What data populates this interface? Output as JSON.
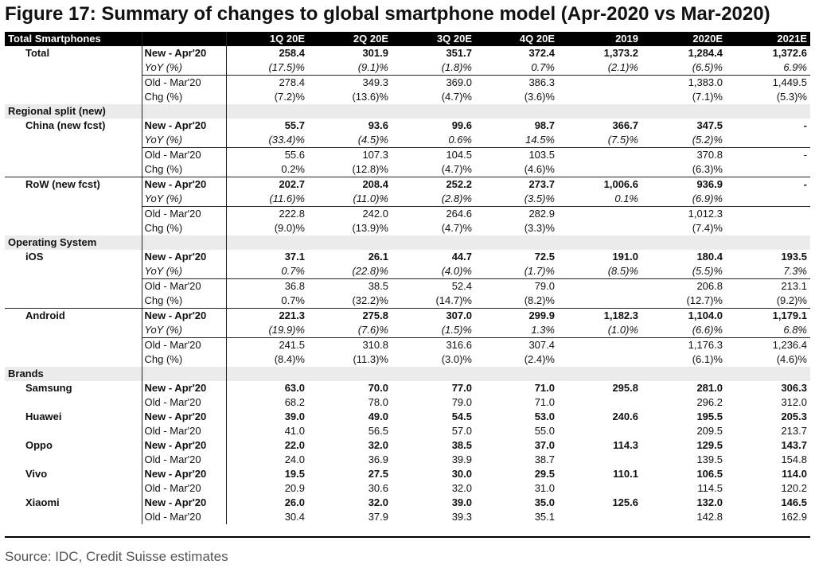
{
  "title": "Figure 17: Summary of changes to global smartphone model (Apr-2020 vs Mar-2020)",
  "header": {
    "first": "Total Smartphones",
    "cols": [
      "1Q 20E",
      "2Q 20E",
      "3Q 20E",
      "4Q 20E",
      "2019",
      "2020E",
      "2021E"
    ]
  },
  "rows": [
    {
      "kind": "data",
      "style": "bold",
      "group": "Total",
      "label": "New - Apr'20",
      "vals": [
        "258.4",
        "301.9",
        "351.7",
        "372.4",
        "1,373.2",
        "1,284.4",
        "1,372.6"
      ]
    },
    {
      "kind": "data",
      "style": "it",
      "group": "",
      "label": "YoY (%)",
      "vals": [
        "(17.5)%",
        "(9.1)%",
        "(1.8)%",
        "0.7%",
        "(2.1)%",
        "(6.5)%",
        "6.9%"
      ]
    },
    {
      "kind": "data",
      "style": "bt",
      "group": "",
      "label": "Old - Mar'20",
      "vals": [
        "278.4",
        "349.3",
        "369.0",
        "386.3",
        "",
        "1,383.0",
        "1,449.5"
      ]
    },
    {
      "kind": "data",
      "style": "",
      "group": "",
      "label": "Chg (%)",
      "vals": [
        "(7.2)%",
        "(13.6)%",
        "(4.7)%",
        "(3.6)%",
        "",
        "(7.1)%",
        "(5.3)%"
      ]
    },
    {
      "kind": "section",
      "label": "Regional split (new)"
    },
    {
      "kind": "data",
      "style": "bold",
      "group": "China (new fcst)",
      "label": "New - Apr'20",
      "vals": [
        "55.7",
        "93.6",
        "99.6",
        "98.7",
        "366.7",
        "347.5",
        "-"
      ]
    },
    {
      "kind": "data",
      "style": "it",
      "group": "",
      "label": "YoY (%)",
      "vals": [
        "(33.4)%",
        "(4.5)%",
        "0.6%",
        "14.5%",
        "(7.5)%",
        "(5.2)%",
        ""
      ]
    },
    {
      "kind": "data",
      "style": "bt",
      "group": "",
      "label": "Old - Mar'20",
      "vals": [
        "55.6",
        "107.3",
        "104.5",
        "103.5",
        "",
        "370.8",
        "-"
      ]
    },
    {
      "kind": "data",
      "style": "",
      "group": "",
      "label": "Chg (%)",
      "vals": [
        "0.2%",
        "(12.8)%",
        "(4.7)%",
        "(4.6)%",
        "",
        "(6.3)%",
        ""
      ]
    },
    {
      "kind": "data",
      "style": "bold gt",
      "group": "RoW (new fcst)",
      "label": "New - Apr'20",
      "vals": [
        "202.7",
        "208.4",
        "252.2",
        "273.7",
        "1,006.6",
        "936.9",
        "-"
      ]
    },
    {
      "kind": "data",
      "style": "it",
      "group": "",
      "label": "YoY (%)",
      "vals": [
        "(11.6)%",
        "(11.0)%",
        "(2.8)%",
        "(3.5)%",
        "0.1%",
        "(6.9)%",
        ""
      ]
    },
    {
      "kind": "data",
      "style": "bt",
      "group": "",
      "label": "Old - Mar'20",
      "vals": [
        "222.8",
        "242.0",
        "264.6",
        "282.9",
        "",
        "1,012.3",
        ""
      ]
    },
    {
      "kind": "data",
      "style": "",
      "group": "",
      "label": "Chg (%)",
      "vals": [
        "(9.0)%",
        "(13.9)%",
        "(4.7)%",
        "(3.3)%",
        "",
        "(7.4)%",
        ""
      ]
    },
    {
      "kind": "section",
      "label": "Operating System"
    },
    {
      "kind": "data",
      "style": "bold",
      "group": "iOS",
      "label": "New - Apr'20",
      "vals": [
        "37.1",
        "26.1",
        "44.7",
        "72.5",
        "191.0",
        "180.4",
        "193.5"
      ]
    },
    {
      "kind": "data",
      "style": "it",
      "group": "",
      "label": "YoY (%)",
      "vals": [
        "0.7%",
        "(22.8)%",
        "(4.0)%",
        "(1.7)%",
        "(8.5)%",
        "(5.5)%",
        "7.3%"
      ]
    },
    {
      "kind": "data",
      "style": "bt",
      "group": "",
      "label": "Old - Mar'20",
      "vals": [
        "36.8",
        "38.5",
        "52.4",
        "79.0",
        "",
        "206.8",
        "213.1"
      ]
    },
    {
      "kind": "data",
      "style": "",
      "group": "",
      "label": "Chg (%)",
      "vals": [
        "0.7%",
        "(32.2)%",
        "(14.7)%",
        "(8.2)%",
        "",
        "(12.7)%",
        "(9.2)%"
      ]
    },
    {
      "kind": "data",
      "style": "bold gt",
      "group": "Android",
      "label": "New - Apr'20",
      "vals": [
        "221.3",
        "275.8",
        "307.0",
        "299.9",
        "1,182.3",
        "1,104.0",
        "1,179.1"
      ]
    },
    {
      "kind": "data",
      "style": "it",
      "group": "",
      "label": "YoY (%)",
      "vals": [
        "(19.9)%",
        "(7.6)%",
        "(1.5)%",
        "1.3%",
        "(1.0)%",
        "(6.6)%",
        "6.8%"
      ]
    },
    {
      "kind": "data",
      "style": "bt",
      "group": "",
      "label": "Old - Mar'20",
      "vals": [
        "241.5",
        "310.8",
        "316.6",
        "307.4",
        "",
        "1,176.3",
        "1,236.4"
      ]
    },
    {
      "kind": "data",
      "style": "",
      "group": "",
      "label": "Chg (%)",
      "vals": [
        "(8.4)%",
        "(11.3)%",
        "(3.0)%",
        "(2.4)%",
        "",
        "(6.1)%",
        "(4.6)%"
      ]
    },
    {
      "kind": "section",
      "label": "Brands"
    },
    {
      "kind": "data",
      "style": "bold",
      "group": "Samsung",
      "label": "New - Apr'20",
      "vals": [
        "63.0",
        "70.0",
        "77.0",
        "71.0",
        "295.8",
        "281.0",
        "306.3"
      ]
    },
    {
      "kind": "data",
      "style": "",
      "group": "",
      "label": "Old - Mar'20",
      "vals": [
        "68.2",
        "78.0",
        "79.0",
        "71.0",
        "",
        "296.2",
        "312.0"
      ]
    },
    {
      "kind": "data",
      "style": "bold",
      "group": "Huawei",
      "label": "New - Apr'20",
      "vals": [
        "39.0",
        "49.0",
        "54.5",
        "53.0",
        "240.6",
        "195.5",
        "205.3"
      ]
    },
    {
      "kind": "data",
      "style": "",
      "group": "",
      "label": "Old - Mar'20",
      "vals": [
        "41.0",
        "56.5",
        "57.0",
        "55.0",
        "",
        "209.5",
        "213.7"
      ]
    },
    {
      "kind": "data",
      "style": "bold",
      "group": "Oppo",
      "label": "New - Apr'20",
      "vals": [
        "22.0",
        "32.0",
        "38.5",
        "37.0",
        "114.3",
        "129.5",
        "143.7"
      ]
    },
    {
      "kind": "data",
      "style": "",
      "group": "",
      "label": "Old - Mar'20",
      "vals": [
        "24.0",
        "36.9",
        "39.9",
        "38.7",
        "",
        "139.5",
        "154.8"
      ]
    },
    {
      "kind": "data",
      "style": "bold",
      "group": "Vivo",
      "label": "New - Apr'20",
      "vals": [
        "19.5",
        "27.5",
        "30.0",
        "29.5",
        "110.1",
        "106.5",
        "114.0"
      ]
    },
    {
      "kind": "data",
      "style": "",
      "group": "",
      "label": "Old - Mar'20",
      "vals": [
        "20.9",
        "30.6",
        "32.0",
        "31.0",
        "",
        "114.5",
        "120.2"
      ]
    },
    {
      "kind": "data",
      "style": "bold",
      "group": "Xiaomi",
      "label": "New - Apr'20",
      "vals": [
        "26.0",
        "32.0",
        "39.0",
        "35.0",
        "125.6",
        "132.0",
        "146.5"
      ]
    },
    {
      "kind": "data",
      "style": "",
      "group": "",
      "label": "Old - Mar'20",
      "vals": [
        "30.4",
        "37.9",
        "39.3",
        "35.1",
        "",
        "142.8",
        "162.9"
      ]
    }
  ],
  "source": "Source: IDC, Credit Suisse estimates"
}
